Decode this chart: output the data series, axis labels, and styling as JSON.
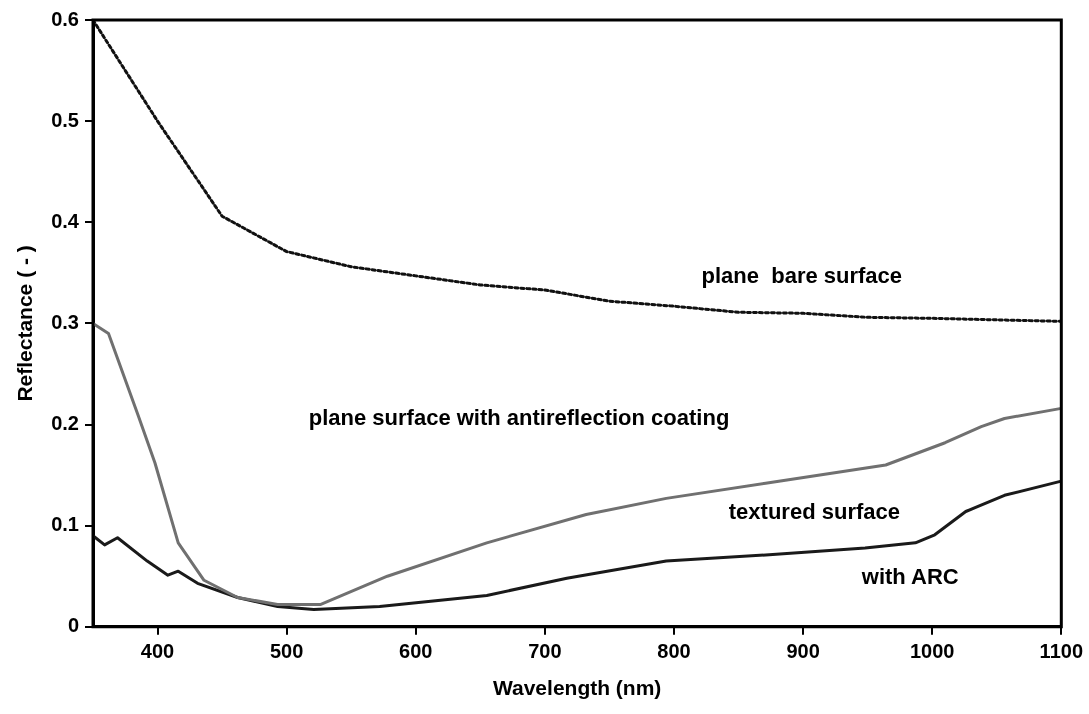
{
  "chart_data": {
    "type": "line",
    "xlabel": "Wavelength (nm)",
    "ylabel": "Reflectance ( - )",
    "xlim": [
      350,
      1100
    ],
    "xticks": [
      400,
      500,
      600,
      700,
      800,
      900,
      1000,
      1100
    ],
    "ylim": [
      0,
      0.6
    ],
    "yticks": [
      0,
      0.1,
      0.2,
      0.3,
      0.4,
      0.5,
      0.6
    ],
    "grid": false,
    "legend": false,
    "marker": "none",
    "series": [
      {
        "name": "plane  bare surface",
        "color": "#111111",
        "line_style": "dotted",
        "x": [
          350,
          400,
          450,
          500,
          550,
          600,
          650,
          700,
          750,
          800,
          850,
          900,
          950,
          1000,
          1100
        ],
        "values": [
          0.6,
          0.5,
          0.406,
          0.371,
          0.356,
          0.347,
          0.338,
          0.333,
          0.322,
          0.317,
          0.311,
          0.31,
          0.306,
          0.305,
          0.302
        ]
      },
      {
        "name": "plane surface with antireflection coating",
        "color": "#707070",
        "line_style": "solid",
        "x": [
          350,
          362,
          385,
          398,
          416,
          436,
          462,
          493,
          526,
          578,
          655,
          732,
          794,
          871,
          964,
          1010,
          1038,
          1056,
          1100
        ],
        "values": [
          0.3,
          0.29,
          0.209,
          0.162,
          0.083,
          0.046,
          0.029,
          0.022,
          0.022,
          0.05,
          0.083,
          0.111,
          0.127,
          0.142,
          0.16,
          0.182,
          0.198,
          0.206,
          0.216
        ]
      },
      {
        "name": "textured surface\nwith ARC",
        "color": "#1a1a1a",
        "line_style": "solid",
        "x": [
          350,
          359,
          369,
          392,
          408,
          416,
          431,
          462,
          493,
          521,
          572,
          655,
          717,
          794,
          871,
          948,
          987,
          1002,
          1026,
          1056,
          1100
        ],
        "values": [
          0.09,
          0.081,
          0.088,
          0.065,
          0.051,
          0.055,
          0.043,
          0.029,
          0.02,
          0.017,
          0.02,
          0.031,
          0.048,
          0.065,
          0.071,
          0.078,
          0.083,
          0.091,
          0.114,
          0.13,
          0.144
        ]
      }
    ]
  }
}
